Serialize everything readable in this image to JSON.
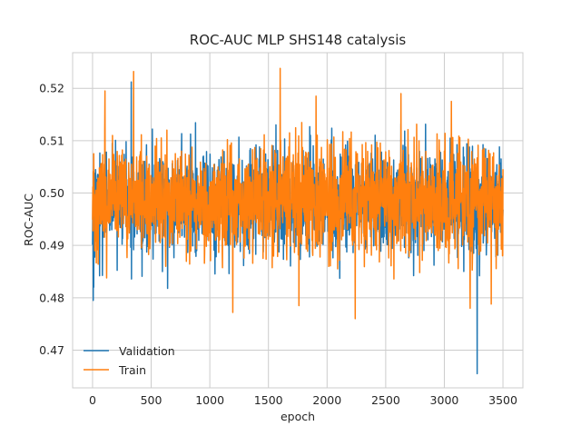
{
  "chart_data": {
    "type": "line",
    "title": "ROC-AUC MLP SHS148 catalysis",
    "xlabel": "epoch",
    "ylabel": "ROC-AUC",
    "xlim": [
      -170,
      3670
    ],
    "ylim": [
      0.4628,
      0.5268
    ],
    "xticks": [
      0,
      500,
      1000,
      1500,
      2000,
      2500,
      3000,
      3500
    ],
    "yticks": [
      0.47,
      0.48,
      0.49,
      0.5,
      0.51,
      0.52
    ],
    "ytick_labels": [
      "0.47",
      "0.48",
      "0.49",
      "0.50",
      "0.51",
      "0.52"
    ],
    "grid": true,
    "legend": "lower-left",
    "n_epochs": 3500,
    "series": [
      {
        "name": "Validation",
        "color": "#1f77b4",
        "center": 0.4985,
        "spread": 0.0048,
        "spikes": [
          {
            "x": 5,
            "y": 0.4795
          },
          {
            "x": 10,
            "y": 0.482
          },
          {
            "x": 60,
            "y": 0.4842
          },
          {
            "x": 330,
            "y": 0.5212
          },
          {
            "x": 640,
            "y": 0.4818
          },
          {
            "x": 3280,
            "y": 0.4655
          },
          {
            "x": 3300,
            "y": 0.4842
          },
          {
            "x": 3250,
            "y": 0.4885
          }
        ]
      },
      {
        "name": "Train",
        "color": "#ff7f0e",
        "center": 0.4985,
        "spread": 0.0052,
        "spikes": [
          {
            "x": 350,
            "y": 0.5232
          },
          {
            "x": 1600,
            "y": 0.5238
          },
          {
            "x": 1195,
            "y": 0.4772
          },
          {
            "x": 2240,
            "y": 0.476
          },
          {
            "x": 3220,
            "y": 0.478
          },
          {
            "x": 3400,
            "y": 0.4788
          },
          {
            "x": 1760,
            "y": 0.4785
          },
          {
            "x": 105,
            "y": 0.5195
          },
          {
            "x": 1905,
            "y": 0.5185
          },
          {
            "x": 2630,
            "y": 0.519
          },
          {
            "x": 3060,
            "y": 0.5175
          }
        ]
      }
    ]
  }
}
